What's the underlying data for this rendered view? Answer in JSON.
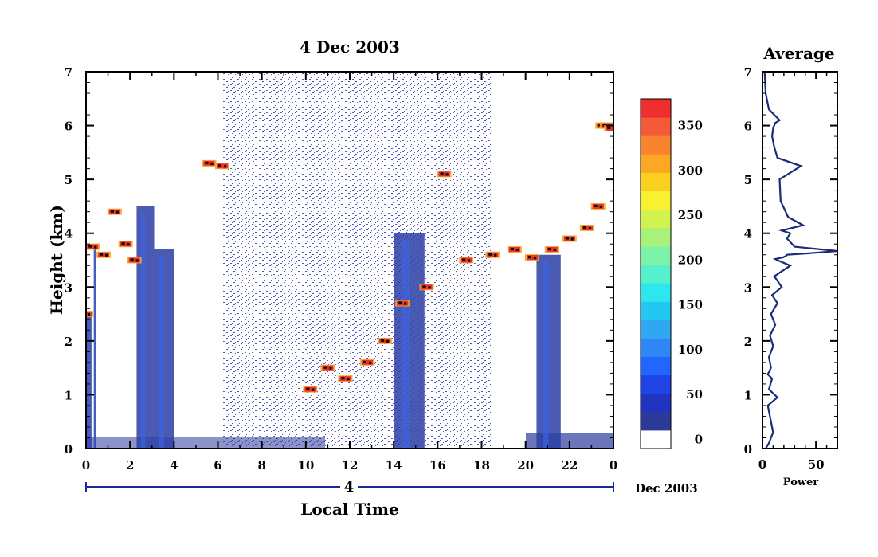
{
  "chart_data": [
    {
      "type": "heatmap",
      "title": "4 Dec 2003",
      "xlabel": "Local Time",
      "ylabel": "Height (km)",
      "xlim": [
        0,
        24
      ],
      "ylim": [
        0,
        7
      ],
      "xticks": [
        "0",
        "2",
        "4",
        "6",
        "8",
        "10",
        "12",
        "14",
        "16",
        "18",
        "20",
        "22",
        "0"
      ],
      "yticks": [
        "0",
        "1",
        "2",
        "3",
        "4",
        "5",
        "6",
        "7"
      ],
      "day_label": "4",
      "date_label": "Dec 2003",
      "colorbar": {
        "ticks": [
          "0",
          "50",
          "100",
          "150",
          "200",
          "250",
          "300",
          "350"
        ],
        "range": [
          0,
          380
        ],
        "colors": [
          "#ffffff",
          "#2b3a99",
          "#2233c0",
          "#1e44e6",
          "#2266ff",
          "#2f86f6",
          "#2ea8f2",
          "#22c8f0",
          "#2ee6ee",
          "#55f0cc",
          "#7df2a8",
          "#a8f27c",
          "#d2f24e",
          "#f8f030",
          "#fcd020",
          "#fca822",
          "#f88430",
          "#f45a3a",
          "#f02e2e"
        ]
      },
      "echo_layers": [
        {
          "name": "cloud-base",
          "x": [
            0.0,
            0.3,
            0.8,
            1.3,
            1.8,
            2.2,
            5.6,
            6.2,
            10.2,
            11.0,
            11.8,
            12.8,
            13.6,
            14.4,
            15.5,
            16.3,
            17.3,
            18.5,
            19.5,
            20.3,
            21.2,
            22.0,
            22.8,
            23.3
          ],
          "y": [
            2.5,
            3.75,
            3.6,
            4.4,
            3.8,
            3.5,
            5.3,
            5.25,
            1.1,
            1.5,
            1.3,
            1.6,
            2.0,
            2.7,
            3.0,
            5.1,
            3.5,
            3.6,
            3.7,
            3.55,
            3.7,
            3.9,
            4.1,
            4.5
          ]
        },
        {
          "name": "upper-cloud",
          "x": [
            23.5,
            23.7,
            23.9
          ],
          "y": [
            6.0,
            6.0,
            5.95
          ]
        }
      ],
      "rain_shafts": [
        {
          "x_start": 0.0,
          "x_end": 0.25,
          "top": 2.5
        },
        {
          "x_start": 0.35,
          "x_end": 0.45,
          "top": 3.8
        },
        {
          "x_start": 2.3,
          "x_end": 3.1,
          "top": 4.5
        },
        {
          "x_start": 3.1,
          "x_end": 4.0,
          "top": 3.7
        },
        {
          "x_start": 14.0,
          "x_end": 15.4,
          "top": 4.0
        },
        {
          "x_start": 20.5,
          "x_end": 21.6,
          "top": 3.6
        }
      ]
    },
    {
      "type": "line",
      "title": "Average",
      "xlabel": "Power",
      "xlim": [
        0,
        70
      ],
      "ylim": [
        0,
        7
      ],
      "xticks": [
        "0",
        "50"
      ],
      "yticks": [
        "0",
        "1",
        "2",
        "3",
        "4",
        "5",
        "6",
        "7"
      ],
      "series": [
        {
          "x": [
            3,
            6,
            8,
            10,
            8,
            5,
            14,
            6,
            9,
            5,
            8,
            6,
            10,
            7,
            12,
            8,
            14,
            9,
            18,
            11,
            26,
            14,
            12,
            19,
            22,
            23,
            45,
            70,
            30,
            23,
            26,
            18,
            38,
            24,
            17,
            16,
            36,
            14,
            11,
            9,
            10,
            12,
            16,
            6,
            3,
            2
          ],
          "y": [
            0.0,
            0.1,
            0.2,
            0.3,
            0.5,
            0.8,
            0.95,
            1.1,
            1.3,
            1.38,
            1.5,
            1.7,
            1.9,
            2.1,
            2.3,
            2.5,
            2.7,
            2.85,
            3.0,
            3.2,
            3.4,
            3.5,
            3.52,
            3.55,
            3.58,
            3.6,
            3.63,
            3.67,
            3.75,
            3.9,
            4.0,
            4.05,
            4.15,
            4.3,
            4.6,
            5.0,
            5.25,
            5.4,
            5.6,
            5.8,
            5.95,
            6.05,
            6.1,
            6.3,
            6.6,
            7.0
          ]
        }
      ]
    }
  ]
}
